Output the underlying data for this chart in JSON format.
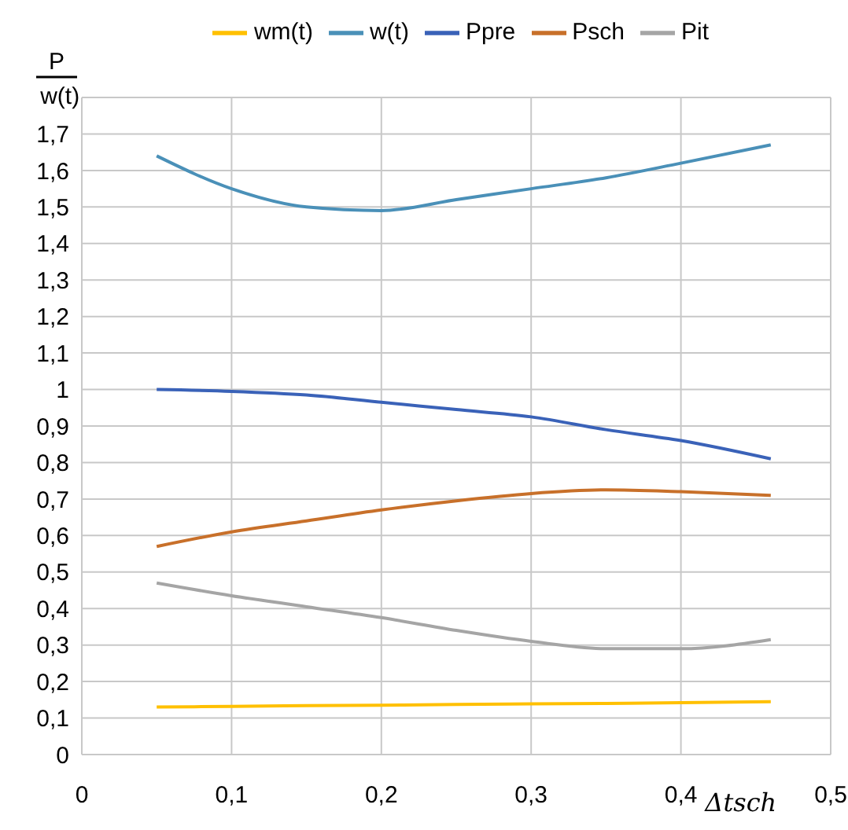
{
  "chart_data": {
    "type": "line",
    "xlabel": "Δtsch",
    "ylabel": "P\nw(t)",
    "x": [
      0.05,
      0.1,
      0.15,
      0.2,
      0.25,
      0.3,
      0.35,
      0.4,
      0.46
    ],
    "series": [
      {
        "name": "wm(t)",
        "color": "#ffc000",
        "values": [
          0.13,
          0.132,
          0.134,
          0.135,
          0.137,
          0.139,
          0.14,
          0.142,
          0.145
        ]
      },
      {
        "name": "w(t)",
        "color": "#4a90b8",
        "values": [
          1.64,
          1.55,
          1.5,
          1.49,
          1.52,
          1.55,
          1.58,
          1.62,
          1.67
        ]
      },
      {
        "name": "Ppre",
        "color": "#3a62b8",
        "values": [
          1.0,
          0.995,
          0.985,
          0.965,
          0.945,
          0.925,
          0.89,
          0.86,
          0.81
        ]
      },
      {
        "name": "Psch",
        "color": "#c8702a",
        "values": [
          0.57,
          0.61,
          0.64,
          0.67,
          0.695,
          0.715,
          0.725,
          0.72,
          0.71
        ]
      },
      {
        "name": "Pit",
        "color": "#a5a5a5",
        "values": [
          0.47,
          0.435,
          0.405,
          0.375,
          0.34,
          0.31,
          0.29,
          0.29,
          0.315
        ]
      }
    ],
    "xlim": [
      0,
      0.5
    ],
    "xticks": [
      0,
      {
        "value": 0.1,
        "label": "0,1"
      },
      {
        "value": 0.2,
        "label": "0,2"
      },
      {
        "value": 0.3,
        "label": "0,3"
      },
      {
        "value": 0.4,
        "label": "0,4"
      },
      {
        "value": 0.5,
        "label": "0,5"
      }
    ],
    "ylim": [
      0,
      1.8
    ],
    "yticks": [
      0,
      {
        "value": 0.1,
        "label": "0,1"
      },
      {
        "value": 0.2,
        "label": "0,2"
      },
      {
        "value": 0.3,
        "label": "0,3"
      },
      {
        "value": 0.4,
        "label": "0,4"
      },
      {
        "value": 0.5,
        "label": "0,5"
      },
      {
        "value": 0.6,
        "label": "0,6"
      },
      {
        "value": 0.7,
        "label": "0,7"
      },
      {
        "value": 0.8,
        "label": "0,8"
      },
      {
        "value": 0.9,
        "label": "0,9"
      },
      1,
      {
        "value": 1.1,
        "label": "1,1"
      },
      {
        "value": 1.2,
        "label": "1,2"
      },
      {
        "value": 1.3,
        "label": "1,3"
      },
      {
        "value": 1.4,
        "label": "1,4"
      },
      {
        "value": 1.5,
        "label": "1,5"
      },
      {
        "value": 1.6,
        "label": "1,6"
      },
      {
        "value": 1.7,
        "label": "1,7"
      }
    ],
    "grid": true,
    "legend": "top",
    "marker": "none",
    "line_style": "solid"
  }
}
